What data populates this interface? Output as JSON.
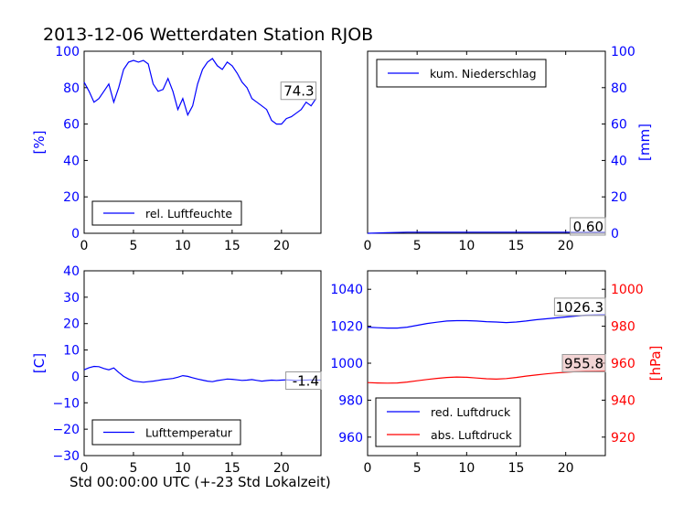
{
  "title": "2013-12-06 Wetterdaten Station RJOB",
  "xlabel": "Std 00:00:00 UTC (+-23 Std Lokalzeit)",
  "colors": {
    "blue": "#0000ff",
    "red": "#ff0000",
    "axis": "#000000",
    "box_fill": "#dddddd"
  },
  "chart_data": [
    {
      "type": "line",
      "id": "humidity",
      "ylabel": "[%]",
      "xlim": [
        0,
        24
      ],
      "ylim": [
        0,
        100
      ],
      "xticks": [
        "0",
        "5",
        "10",
        "15",
        "20"
      ],
      "yticks": [
        "0",
        "20",
        "40",
        "60",
        "80",
        "100"
      ],
      "legend": "rel. Luftfeuchte",
      "last_value_label": "74.3",
      "series": [
        {
          "color": "#0000ff",
          "x": [
            0,
            0.5,
            1,
            1.5,
            2,
            2.5,
            3,
            3.5,
            4,
            4.5,
            5,
            5.5,
            6,
            6.5,
            7,
            7.5,
            8,
            8.5,
            9,
            9.5,
            10,
            10.5,
            11,
            11.5,
            12,
            12.5,
            13,
            13.5,
            14,
            14.5,
            15,
            15.5,
            16,
            16.5,
            17,
            17.5,
            18,
            18.5,
            19,
            19.5,
            20,
            20.5,
            21,
            21.5,
            22,
            22.5,
            23,
            23.5
          ],
          "y": [
            83,
            78,
            72,
            74,
            78,
            82,
            72,
            80,
            90,
            94,
            95,
            94,
            95,
            93,
            82,
            78,
            79,
            85,
            78,
            68,
            74,
            65,
            70,
            82,
            90,
            94,
            96,
            92,
            90,
            94,
            92,
            88,
            83,
            80,
            74,
            72,
            70,
            68,
            62,
            60,
            60,
            63,
            64,
            66,
            68,
            72,
            70,
            74
          ]
        }
      ]
    },
    {
      "type": "line",
      "id": "precipitation",
      "ylabel": "[mm]",
      "xlim": [
        0,
        24
      ],
      "ylim": [
        0,
        100
      ],
      "xticks": [
        "0",
        "5",
        "10",
        "15",
        "20"
      ],
      "yticks": [
        "0",
        "20",
        "40",
        "60",
        "80",
        "100"
      ],
      "legend": "kum. Niederschlag",
      "last_value_label": "0.60",
      "series": [
        {
          "color": "#0000ff",
          "x": [
            0,
            2,
            4,
            6,
            8,
            10,
            12,
            14,
            16,
            18,
            20,
            22,
            24
          ],
          "y": [
            0,
            0.3,
            0.6,
            0.6,
            0.6,
            0.6,
            0.6,
            0.6,
            0.6,
            0.6,
            0.6,
            0.6,
            0.6
          ]
        }
      ]
    },
    {
      "type": "line",
      "id": "temperature",
      "ylabel": "[C]",
      "xlim": [
        0,
        24
      ],
      "ylim": [
        -30,
        40
      ],
      "xticks": [
        "0",
        "5",
        "10",
        "15",
        "20"
      ],
      "yticks": [
        "−30",
        "−20",
        "−10",
        "0",
        "10",
        "20",
        "30",
        "40"
      ],
      "legend": "Lufttemperatur",
      "last_value_label": "-1.4",
      "series": [
        {
          "color": "#0000ff",
          "x": [
            0,
            0.5,
            1,
            1.5,
            2,
            2.5,
            3,
            3.5,
            4,
            4.5,
            5,
            5.5,
            6,
            6.5,
            7,
            7.5,
            8,
            8.5,
            9,
            9.5,
            10,
            10.5,
            11,
            11.5,
            12,
            12.5,
            13,
            13.5,
            14,
            14.5,
            15,
            15.5,
            16,
            16.5,
            17,
            17.5,
            18,
            18.5,
            19,
            19.5,
            20,
            20.5,
            21,
            21.5,
            22,
            22.5,
            23,
            23.5,
            24
          ],
          "y": [
            2.5,
            3.3,
            3.8,
            3.7,
            3.0,
            2.5,
            3.2,
            1.5,
            0.0,
            -1.0,
            -1.8,
            -2.0,
            -2.2,
            -2.0,
            -1.8,
            -1.5,
            -1.2,
            -1.0,
            -0.8,
            -0.3,
            0.3,
            0.0,
            -0.5,
            -1.0,
            -1.4,
            -1.8,
            -2.0,
            -1.6,
            -1.3,
            -1.0,
            -1.1,
            -1.3,
            -1.5,
            -1.4,
            -1.2,
            -1.5,
            -1.8,
            -1.6,
            -1.4,
            -1.5,
            -1.4,
            -1.3,
            -1.4,
            -1.5,
            -1.4,
            -1.4,
            -1.3,
            -1.4,
            -1.4
          ]
        }
      ]
    },
    {
      "type": "line",
      "id": "pressure",
      "ylabel_right": "[hPa]",
      "xlim": [
        0,
        24
      ],
      "ylim_left": [
        950,
        1050
      ],
      "ylim_right": [
        910,
        1010
      ],
      "xticks": [
        "0",
        "5",
        "10",
        "15",
        "20"
      ],
      "yticks_left": [
        "960",
        "980",
        "1000",
        "1020",
        "1040"
      ],
      "yticks_right": [
        "920",
        "940",
        "960",
        "980",
        "1000"
      ],
      "series": [
        {
          "name": "red. Luftdruck",
          "axis": "left",
          "color": "#0000ff",
          "last_value_label": "1026.3",
          "x": [
            0,
            1,
            2,
            3,
            4,
            5,
            6,
            7,
            8,
            9,
            10,
            11,
            12,
            13,
            14,
            15,
            16,
            17,
            18,
            19,
            20,
            21,
            22,
            23,
            24
          ],
          "y": [
            1019.5,
            1019.2,
            1019.0,
            1019.0,
            1019.5,
            1020.5,
            1021.5,
            1022.2,
            1022.8,
            1023.0,
            1023.0,
            1022.8,
            1022.5,
            1022.3,
            1022.0,
            1022.3,
            1022.8,
            1023.5,
            1024.0,
            1024.5,
            1025.0,
            1025.5,
            1026.0,
            1026.2,
            1026.3
          ]
        },
        {
          "name": "abs. Luftdruck",
          "axis": "right",
          "color": "#ff0000",
          "last_value_label": "955.8",
          "x": [
            0,
            1,
            2,
            3,
            4,
            5,
            6,
            7,
            8,
            9,
            10,
            11,
            12,
            13,
            14,
            15,
            16,
            17,
            18,
            19,
            20,
            21,
            22,
            23,
            24
          ],
          "y": [
            949.5,
            949.3,
            949.2,
            949.3,
            949.8,
            950.5,
            951.2,
            951.8,
            952.3,
            952.5,
            952.4,
            952.0,
            951.6,
            951.4,
            951.7,
            952.3,
            953.0,
            953.6,
            954.2,
            954.7,
            955.1,
            955.4,
            955.6,
            955.7,
            955.8
          ]
        }
      ]
    }
  ]
}
